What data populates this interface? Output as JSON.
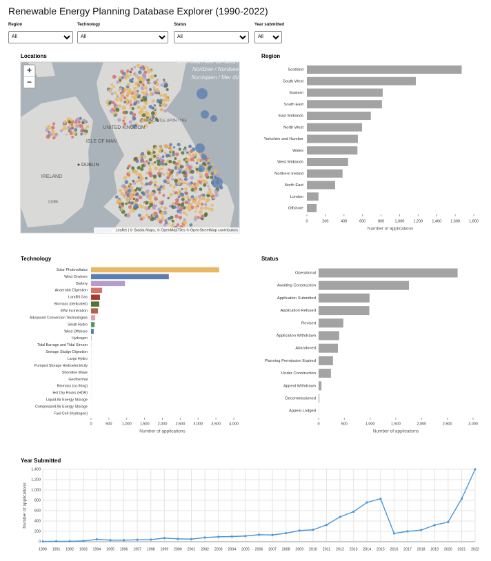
{
  "header": {
    "title": "Renewable Energy Planning Database Explorer (1990-2022)"
  },
  "filters": [
    {
      "label": "Region",
      "value": "All"
    },
    {
      "label": "Technology",
      "value": "All"
    },
    {
      "label": "Status",
      "value": "All"
    },
    {
      "label": "Year submitted",
      "value": "All"
    }
  ],
  "map": {
    "title": "Locations",
    "zoom_in": "+",
    "zoom_out": "−",
    "labels": [
      "North Sea / Mer du Nord /",
      "Nordzee / Nordsee",
      "Nordsjøen / Mer du",
      "UNITED KINGDOM",
      "NEWCASTLE UPON TYNE",
      "ISLE OF MAN",
      "DUBLIN",
      "IRELAND",
      "CORK"
    ],
    "attribution": "Leaflet | © Stadia Maps, © OpenMapTiles © OpenStreetMap contributors"
  },
  "chart_data": [
    {
      "type": "bar",
      "orientation": "horizontal",
      "title": "Region",
      "xlabel": "Number of applications",
      "categories": [
        "Scotland",
        "South West",
        "Eastern",
        "South East",
        "East Midlands",
        "North West",
        "Yorkshire and Humber",
        "Wales",
        "West Midlands",
        "Northern Ireland",
        "North East",
        "London",
        "Offshore"
      ],
      "values": [
        1670,
        1175,
        818,
        810,
        690,
        595,
        550,
        545,
        445,
        385,
        305,
        125,
        105
      ],
      "color": "#a3a3a3",
      "xlim": [
        0,
        1800
      ],
      "xticks": [
        0,
        200,
        400,
        600,
        800,
        {
          "value": 1000,
          "label": "1,000"
        },
        {
          "value": 1200,
          "label": "1,200"
        },
        {
          "value": 1400,
          "label": "1,400"
        },
        {
          "value": 1600,
          "label": "1,600"
        },
        {
          "value": 1800,
          "label": "1,800"
        }
      ],
      "grid": false
    },
    {
      "type": "bar",
      "orientation": "horizontal",
      "title": "Technology",
      "xlabel": "Number of applications",
      "categories": [
        "Solar Photovoltaics",
        "Wind Onshore",
        "Battery",
        "Anaerobic Digestion",
        "Landfill Gas",
        "Biomass (dedicated)",
        "EfW Incineration",
        "Advanced Conversion Technologies",
        "Small Hydro",
        "Wind Offshore",
        "Hydrogen",
        "Tidal Barrage and Tidal Stream",
        "Sewage Sludge Digestion",
        "Large Hydro",
        "Pumped Storage Hydroelectricity",
        "Shoreline Wave",
        "Geothermal",
        "Biomass (co-firing)",
        "Hot Dry Rocks (HDR)",
        "Liquid Air Energy Storage",
        "Compressed Air Energy Storage",
        "Fuel Cell (Hydrogen)"
      ],
      "values": [
        3590,
        2180,
        950,
        310,
        250,
        230,
        195,
        115,
        100,
        75,
        15,
        8,
        5,
        4,
        4,
        3,
        3,
        3,
        2,
        2,
        1,
        1
      ],
      "colors": [
        "#e8b766",
        "#5b7fb0",
        "#b69dc9",
        "#d5716f",
        "#a83a2c",
        "#56733a",
        "#b3634a",
        "#ec9aaa",
        "#4c9a6a",
        "#4f7db4",
        "#b5b5b5",
        "#b5b5b5",
        "#b5b5b5",
        "#b5b5b5",
        "#b5b5b5",
        "#b5b5b5",
        "#b5b5b5",
        "#b5b5b5",
        "#b5b5b5",
        "#b5b5b5",
        "#b5b5b5",
        "#b5b5b5"
      ],
      "xlim": [
        0,
        4000
      ],
      "xticks": [
        0,
        500,
        {
          "value": 1000,
          "label": "1,000"
        },
        {
          "value": 1500,
          "label": "1,500"
        },
        {
          "value": 2000,
          "label": "2,000"
        },
        {
          "value": 2500,
          "label": "2,500"
        },
        {
          "value": 3000,
          "label": "3,000"
        },
        {
          "value": 3500,
          "label": "3,500"
        },
        {
          "value": 4000,
          "label": "4,000"
        }
      ],
      "grid": false
    },
    {
      "type": "bar",
      "orientation": "horizontal",
      "title": "Status",
      "xlabel": "Number of applications",
      "categories": [
        "Operational",
        "Awaiting Construction",
        "Application Submitted",
        "Application Refused",
        "Revised",
        "Application Withdrawn",
        "Abandoned",
        "Planning Permission Expired",
        "Under Construction",
        "Appeal Withdrawn",
        "Decommissioned",
        "Appeal Lodged"
      ],
      "values": [
        2700,
        1755,
        990,
        985,
        480,
        400,
        375,
        280,
        240,
        55,
        15,
        3
      ],
      "color": "#a3a3a3",
      "xlim": [
        0,
        3000
      ],
      "xticks": [
        0,
        500,
        {
          "value": 1000,
          "label": "1,000"
        },
        {
          "value": 1500,
          "label": "1,500"
        },
        {
          "value": 2000,
          "label": "2,000"
        },
        {
          "value": 2500,
          "label": "2,500"
        },
        {
          "value": 3000,
          "label": "3,000"
        }
      ],
      "grid": false
    },
    {
      "type": "line",
      "title": "Year Submitted",
      "ylabel": "Number of applications",
      "x": [
        1990,
        1991,
        1992,
        1993,
        1994,
        1995,
        1996,
        1997,
        1998,
        1999,
        2000,
        2001,
        2002,
        2003,
        2004,
        2005,
        2006,
        2007,
        2008,
        2009,
        2010,
        2011,
        2012,
        2013,
        2014,
        2015,
        2016,
        2017,
        2018,
        2019,
        2020,
        2021,
        2022
      ],
      "values": [
        5,
        8,
        8,
        15,
        45,
        30,
        30,
        38,
        40,
        70,
        55,
        50,
        80,
        95,
        100,
        110,
        135,
        130,
        165,
        215,
        230,
        325,
        480,
        580,
        760,
        830,
        160,
        200,
        225,
        320,
        380,
        830,
        1400
      ],
      "color": "#4a97d6",
      "xlim": [
        1990,
        2022
      ],
      "xticks": [
        1990,
        1991,
        1992,
        1993,
        1994,
        1995,
        1996,
        1997,
        1998,
        1999,
        2000,
        2001,
        2002,
        2003,
        2004,
        2005,
        2006,
        2007,
        2008,
        2009,
        2010,
        2011,
        2012,
        2013,
        2014,
        2015,
        2016,
        2017,
        2018,
        2019,
        2020,
        2021,
        2022
      ],
      "ylim": [
        0,
        1400
      ],
      "yticks": [
        0,
        200,
        400,
        600,
        800,
        {
          "value": 1000,
          "label": "1,000"
        },
        {
          "value": 1200,
          "label": "1,200"
        },
        {
          "value": 1400,
          "label": "1,400"
        }
      ],
      "grid": true
    }
  ]
}
